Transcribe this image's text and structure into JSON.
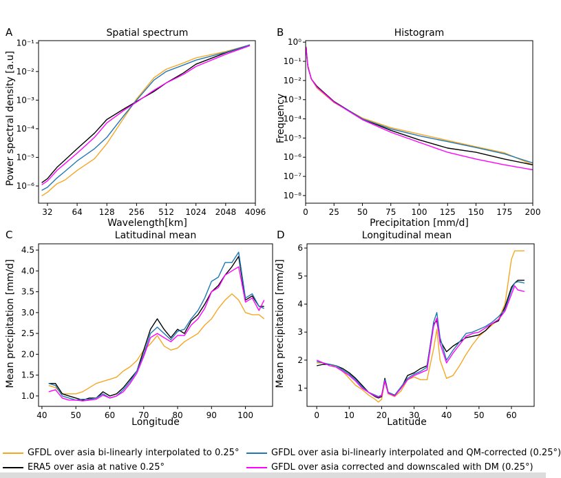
{
  "colors": {
    "gfdl": "#f5a623",
    "era5": "#000000",
    "qm": "#1f77b4",
    "dm": "#ff00ff"
  },
  "panels": {
    "A": {
      "letter": "A",
      "title": "Spatial spectrum",
      "xlabel": "Wavelength[km]",
      "ylabel": "Power spectral density [a.u]"
    },
    "B": {
      "letter": "B",
      "title": "Histogram",
      "xlabel": "Precipitation [mm/d]",
      "ylabel": "Frequency"
    },
    "C": {
      "letter": "C",
      "title": "Latitudinal mean",
      "xlabel": "Longitude",
      "ylabel": "Mean precipitation [mm/d]"
    },
    "D": {
      "letter": "D",
      "title": "Longitudinal mean",
      "xlabel": "Latitude",
      "ylabel": "Mean precipitation [mm/d]"
    }
  },
  "legend": {
    "gfdl": "GFDL over asia bi-linearly interpolated to 0.25°",
    "era5": "ERA5 over asia at native 0.25°",
    "qm": "GFDL over asia bi-linearly interpolated and QM-corrected (0.25°)",
    "dm": "GFDL over asia corrected and downscaled with DM (0.25°)"
  },
  "chart_data": [
    {
      "id": "A",
      "type": "line",
      "title": "Spatial spectrum",
      "xlabel": "Wavelength[km]",
      "ylabel": "Power spectral density [a.u]",
      "xscale": "log2",
      "yscale": "log10",
      "xlim": [
        26,
        4096
      ],
      "ylim": [
        2.5e-07,
        0.12
      ],
      "xticks": [
        32,
        64,
        128,
        256,
        512,
        1024,
        2048,
        4096
      ],
      "xticklabels": [
        "32",
        "64",
        "128",
        "256",
        "512",
        "1024",
        "2048",
        "4096"
      ],
      "yticks": [
        1e-06,
        1e-05,
        0.0001,
        0.001,
        0.01,
        0.1
      ],
      "yticklabels": [
        "10⁻⁶",
        "10⁻⁵",
        "10⁻⁴",
        "10⁻³",
        "10⁻²",
        "10⁻¹"
      ],
      "x": [
        28,
        32,
        40,
        48,
        64,
        96,
        128,
        192,
        256,
        384,
        512,
        768,
        1024,
        2048,
        3600
      ],
      "series": [
        {
          "key": "gfdl",
          "values": [
            4.5e-07,
            6e-07,
            1.2e-06,
            1.6e-06,
            3.5e-06,
            9e-06,
            3e-05,
            0.00025,
            0.0011,
            0.006,
            0.012,
            0.02,
            0.03,
            0.05,
            0.085
          ]
        },
        {
          "key": "era5",
          "values": [
            1.3e-06,
            1.8e-06,
            4.5e-06,
            8e-06,
            2e-05,
            7e-05,
            0.00021,
            0.0005,
            0.0009,
            0.002,
            0.004,
            0.009,
            0.018,
            0.045,
            0.085
          ]
        },
        {
          "key": "qm",
          "values": [
            7e-07,
            9e-07,
            1.9e-06,
            3.2e-06,
            7.5e-06,
            2e-05,
            5e-05,
            0.0003,
            0.001,
            0.005,
            0.01,
            0.017,
            0.025,
            0.047,
            0.085
          ]
        },
        {
          "key": "dm",
          "values": [
            1.1e-06,
            1.5e-06,
            3.5e-06,
            6e-06,
            1.4e-05,
            5e-05,
            0.00016,
            0.00045,
            0.00085,
            0.0022,
            0.004,
            0.008,
            0.015,
            0.04,
            0.08
          ]
        }
      ]
    },
    {
      "id": "B",
      "type": "line",
      "title": "Histogram",
      "xlabel": "Precipitation [mm/d]",
      "ylabel": "Frequency",
      "yscale": "log10",
      "xlim": [
        0,
        200
      ],
      "ylim": [
        4e-09,
        1.2
      ],
      "xticks": [
        0,
        25,
        50,
        75,
        100,
        125,
        150,
        175,
        200
      ],
      "xticklabels": [
        "0",
        "25",
        "50",
        "75",
        "100",
        "125",
        "150",
        "175",
        "200"
      ],
      "yticks": [
        1e-08,
        1e-07,
        1e-06,
        1e-05,
        0.0001,
        0.001,
        0.01,
        0.1,
        1
      ],
      "yticklabels": [
        "10⁻⁸",
        "10⁻⁷",
        "10⁻⁶",
        "10⁻⁵",
        "10⁻⁴",
        "10⁻³",
        "10⁻²",
        "10⁻¹",
        "10⁰"
      ],
      "x": [
        0.5,
        1,
        2,
        5,
        10,
        25,
        50,
        75,
        100,
        125,
        150,
        175,
        200
      ],
      "series": [
        {
          "key": "gfdl",
          "values": [
            0.6,
            0.25,
            0.06,
            0.012,
            0.004,
            0.0007,
            0.00011,
            3.5e-05,
            1.6e-05,
            7.5e-06,
            3.5e-06,
            1.7e-06,
            4e-07
          ]
        },
        {
          "key": "era5",
          "values": [
            0.5,
            0.2,
            0.05,
            0.012,
            0.005,
            0.0008,
            0.0001,
            2.5e-05,
            8e-06,
            3e-06,
            1.8e-06,
            8e-07,
            4e-07
          ]
        },
        {
          "key": "qm",
          "values": [
            0.55,
            0.22,
            0.055,
            0.012,
            0.0045,
            0.00075,
            0.0001,
            3e-05,
            1.3e-05,
            6.5e-06,
            3.2e-06,
            1.5e-06,
            5e-07
          ]
        },
        {
          "key": "dm",
          "values": [
            0.55,
            0.22,
            0.055,
            0.012,
            0.0045,
            0.00075,
            9e-05,
            2e-05,
            6e-06,
            1.8e-06,
            8e-07,
            4e-07,
            2.2e-07
          ]
        }
      ]
    },
    {
      "id": "C",
      "type": "line",
      "title": "Latitudinal mean",
      "xlabel": "Longitude",
      "ylabel": "Mean precipitation [mm/d]",
      "xlim": [
        39,
        108
      ],
      "ylim": [
        0.75,
        4.65
      ],
      "xticks": [
        40,
        50,
        60,
        70,
        80,
        90,
        100
      ],
      "xticklabels": [
        "40",
        "50",
        "60",
        "70",
        "80",
        "90",
        "100"
      ],
      "yticks": [
        1.0,
        1.5,
        2.0,
        2.5,
        3.0,
        3.5,
        4.0,
        4.5
      ],
      "yticklabels": [
        "1.0",
        "1.5",
        "2.0",
        "2.5",
        "3.0",
        "3.5",
        "4.0",
        "4.5"
      ],
      "x": [
        42,
        44,
        46,
        48,
        50,
        52,
        54,
        56,
        58,
        60,
        62,
        64,
        66,
        68,
        70,
        72,
        74,
        76,
        78,
        80,
        82,
        84,
        86,
        88,
        90,
        92,
        94,
        96,
        98,
        100,
        102,
        104,
        105.5
      ],
      "series": [
        {
          "key": "gfdl",
          "values": [
            1.25,
            1.2,
            1.05,
            1.05,
            1.05,
            1.1,
            1.2,
            1.3,
            1.35,
            1.4,
            1.45,
            1.6,
            1.7,
            1.85,
            2.1,
            2.25,
            2.45,
            2.2,
            2.1,
            2.15,
            2.3,
            2.4,
            2.5,
            2.7,
            2.85,
            3.1,
            3.3,
            3.45,
            3.3,
            3.0,
            2.95,
            2.95,
            2.85
          ]
        },
        {
          "key": "era5",
          "values": [
            1.3,
            1.3,
            1.05,
            1.0,
            0.95,
            0.9,
            0.95,
            0.95,
            1.1,
            1.0,
            1.05,
            1.2,
            1.4,
            1.6,
            2.1,
            2.6,
            2.85,
            2.6,
            2.4,
            2.6,
            2.5,
            2.8,
            2.95,
            3.2,
            3.5,
            3.65,
            3.9,
            4.1,
            4.35,
            3.3,
            3.4,
            3.15,
            3.15
          ]
        },
        {
          "key": "qm",
          "values": [
            1.3,
            1.25,
            1.0,
            0.95,
            0.9,
            0.92,
            0.92,
            0.95,
            1.05,
            0.95,
            1.0,
            1.15,
            1.35,
            1.6,
            2.0,
            2.5,
            2.65,
            2.5,
            2.35,
            2.55,
            2.6,
            2.85,
            3.05,
            3.35,
            3.75,
            3.85,
            4.2,
            4.2,
            4.45,
            3.35,
            3.45,
            3.15,
            3.1
          ]
        },
        {
          "key": "dm",
          "values": [
            1.1,
            1.15,
            0.95,
            0.9,
            0.9,
            0.88,
            0.9,
            0.92,
            1.02,
            0.95,
            1.0,
            1.1,
            1.3,
            1.55,
            1.95,
            2.4,
            2.5,
            2.4,
            2.3,
            2.45,
            2.45,
            2.7,
            2.85,
            3.1,
            3.5,
            3.6,
            3.9,
            4.0,
            4.1,
            3.25,
            3.35,
            3.05,
            3.3
          ]
        }
      ]
    },
    {
      "id": "D",
      "type": "line",
      "title": "Longitudinal mean",
      "xlabel": "Latitude",
      "ylabel": "Mean precipitation [mm/d]",
      "xlim": [
        -3,
        67
      ],
      "ylim": [
        0.35,
        6.15
      ],
      "xticks": [
        0,
        10,
        20,
        30,
        40,
        50,
        60
      ],
      "xticklabels": [
        "0",
        "10",
        "20",
        "30",
        "40",
        "50",
        "60"
      ],
      "yticks": [
        1,
        2,
        3,
        4,
        5,
        6
      ],
      "yticklabels": [
        "1",
        "2",
        "3",
        "4",
        "5",
        "6"
      ],
      "x": [
        0,
        2,
        4,
        6,
        8,
        10,
        12,
        14,
        16,
        18,
        19,
        20,
        21,
        22,
        24,
        26,
        28,
        30,
        32,
        34,
        36,
        37,
        38,
        40,
        42,
        44,
        46,
        48,
        50,
        52,
        54,
        56,
        58,
        60,
        61,
        62,
        64
      ],
      "series": [
        {
          "key": "gfdl",
          "values": [
            1.9,
            1.9,
            1.85,
            1.75,
            1.6,
            1.35,
            1.1,
            0.95,
            0.75,
            0.6,
            0.5,
            0.6,
            1.25,
            0.8,
            0.7,
            0.9,
            1.3,
            1.4,
            1.3,
            1.3,
            2.4,
            3.1,
            2.0,
            1.35,
            1.45,
            1.8,
            2.2,
            2.55,
            2.85,
            3.05,
            3.25,
            3.45,
            4.0,
            5.6,
            5.9,
            5.9,
            5.9
          ]
        },
        {
          "key": "era5",
          "values": [
            1.8,
            1.85,
            1.85,
            1.8,
            1.7,
            1.55,
            1.35,
            1.1,
            0.85,
            0.7,
            0.65,
            0.7,
            1.35,
            0.85,
            0.75,
            1.0,
            1.45,
            1.55,
            1.7,
            1.8,
            3.3,
            3.4,
            2.7,
            2.3,
            2.5,
            2.65,
            2.8,
            2.85,
            2.9,
            3.05,
            3.3,
            3.4,
            3.9,
            4.6,
            4.75,
            4.85,
            4.85
          ]
        },
        {
          "key": "qm",
          "values": [
            1.95,
            1.9,
            1.85,
            1.8,
            1.65,
            1.5,
            1.3,
            1.05,
            0.85,
            0.75,
            0.7,
            0.75,
            1.3,
            0.85,
            0.75,
            1.05,
            1.35,
            1.5,
            1.6,
            1.75,
            3.35,
            3.7,
            2.8,
            2.0,
            2.35,
            2.65,
            2.95,
            3.0,
            3.1,
            3.2,
            3.35,
            3.55,
            3.8,
            4.5,
            4.75,
            4.8,
            4.75
          ]
        },
        {
          "key": "dm",
          "values": [
            2.0,
            1.9,
            1.8,
            1.75,
            1.6,
            1.45,
            1.25,
            1.0,
            0.85,
            0.72,
            0.68,
            0.72,
            1.25,
            0.82,
            0.72,
            1.0,
            1.3,
            1.45,
            1.55,
            1.65,
            3.2,
            3.5,
            2.6,
            1.9,
            2.25,
            2.55,
            2.85,
            2.95,
            3.0,
            3.15,
            3.3,
            3.45,
            3.75,
            4.35,
            4.65,
            4.5,
            4.45
          ]
        }
      ]
    }
  ]
}
